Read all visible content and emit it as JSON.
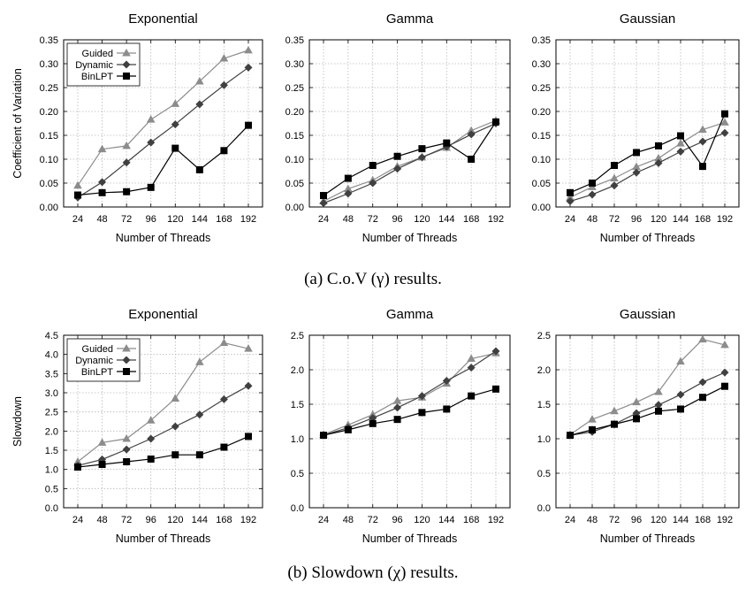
{
  "captions": {
    "a": "(a) C.o.V (γ) results.",
    "b": "(b) Slowdown (χ) results."
  },
  "styles": {
    "Guided": {
      "color": "#8c8c8c",
      "marker": "triangle"
    },
    "Dynamic": {
      "color": "#404040",
      "marker": "diamond"
    },
    "BinLPT": {
      "color": "#000000",
      "marker": "square"
    }
  },
  "chart_data": [
    {
      "type": "line",
      "title": "Exponential",
      "xlabel": "Number of Threads",
      "ylabel": "Coefficient of Variation",
      "ylim": [
        0,
        0.35
      ],
      "yticks": [
        0,
        0.05,
        0.1,
        0.15,
        0.2,
        0.25,
        0.3,
        0.35
      ],
      "ytick_labels": [
        "0.00",
        "0.05",
        "0.10",
        "0.15",
        "0.20",
        "0.25",
        "0.30",
        "0.35"
      ],
      "categories": [
        "24",
        "48",
        "72",
        "96",
        "120",
        "144",
        "168",
        "192"
      ],
      "grid": true,
      "legend": "top-left",
      "series": [
        {
          "name": "Guided",
          "values": [
            0.045,
            0.121,
            0.128,
            0.183,
            0.216,
            0.263,
            0.311,
            0.328
          ]
        },
        {
          "name": "Dynamic",
          "values": [
            0.02,
            0.052,
            0.093,
            0.135,
            0.173,
            0.215,
            0.255,
            0.292
          ]
        },
        {
          "name": "BinLPT",
          "values": [
            0.025,
            0.03,
            0.032,
            0.041,
            0.123,
            0.078,
            0.118,
            0.171
          ]
        }
      ]
    },
    {
      "type": "line",
      "title": "Gamma",
      "xlabel": "Number of Threads",
      "ylabel": "",
      "ylim": [
        0,
        0.35
      ],
      "yticks": [
        0,
        0.05,
        0.1,
        0.15,
        0.2,
        0.25,
        0.3,
        0.35
      ],
      "ytick_labels": [
        "0.00",
        "0.05",
        "0.10",
        "0.15",
        "0.20",
        "0.25",
        "0.30",
        "0.35"
      ],
      "categories": [
        "24",
        "48",
        "72",
        "96",
        "120",
        "144",
        "168",
        "192"
      ],
      "grid": true,
      "series": [
        {
          "name": "Guided",
          "values": [
            0.012,
            0.038,
            0.056,
            0.085,
            0.104,
            0.124,
            0.16,
            0.181
          ]
        },
        {
          "name": "Dynamic",
          "values": [
            0.008,
            0.028,
            0.05,
            0.08,
            0.104,
            0.126,
            0.152,
            0.175
          ]
        },
        {
          "name": "BinLPT",
          "values": [
            0.024,
            0.06,
            0.087,
            0.106,
            0.122,
            0.134,
            0.1,
            0.178
          ]
        }
      ]
    },
    {
      "type": "line",
      "title": "Gaussian",
      "xlabel": "Number of Threads",
      "ylabel": "",
      "ylim": [
        0,
        0.35
      ],
      "yticks": [
        0,
        0.05,
        0.1,
        0.15,
        0.2,
        0.25,
        0.3,
        0.35
      ],
      "ytick_labels": [
        "0.00",
        "0.05",
        "0.10",
        "0.15",
        "0.20",
        "0.25",
        "0.30",
        "0.35"
      ],
      "categories": [
        "24",
        "48",
        "72",
        "96",
        "120",
        "144",
        "168",
        "192"
      ],
      "grid": true,
      "series": [
        {
          "name": "Guided",
          "values": [
            0.02,
            0.042,
            0.06,
            0.084,
            0.102,
            0.133,
            0.162,
            0.177
          ]
        },
        {
          "name": "Dynamic",
          "values": [
            0.012,
            0.026,
            0.045,
            0.072,
            0.092,
            0.116,
            0.137,
            0.155
          ]
        },
        {
          "name": "BinLPT",
          "values": [
            0.03,
            0.05,
            0.087,
            0.114,
            0.128,
            0.149,
            0.085,
            0.195
          ]
        }
      ]
    },
    {
      "type": "line",
      "title": "Exponential",
      "xlabel": "Number of Threads",
      "ylabel": "Slowdown",
      "ylim": [
        0,
        4.5
      ],
      "yticks": [
        0,
        0.5,
        1.0,
        1.5,
        2.0,
        2.5,
        3.0,
        3.5,
        4.0,
        4.5
      ],
      "ytick_labels": [
        "0.0",
        "0.5",
        "1.0",
        "1.5",
        "2.0",
        "2.5",
        "3.0",
        "3.5",
        "4.0",
        "4.5"
      ],
      "categories": [
        "24",
        "48",
        "72",
        "96",
        "120",
        "144",
        "168",
        "192"
      ],
      "grid": true,
      "legend": "top-left",
      "series": [
        {
          "name": "Guided",
          "values": [
            1.2,
            1.7,
            1.8,
            2.28,
            2.85,
            3.8,
            4.3,
            4.15
          ]
        },
        {
          "name": "Dynamic",
          "values": [
            1.1,
            1.26,
            1.52,
            1.8,
            2.12,
            2.43,
            2.83,
            3.18
          ]
        },
        {
          "name": "BinLPT",
          "values": [
            1.06,
            1.13,
            1.2,
            1.27,
            1.38,
            1.38,
            1.58,
            1.86
          ]
        }
      ]
    },
    {
      "type": "line",
      "title": "Gamma",
      "xlabel": "Number of Threads",
      "ylabel": "",
      "ylim": [
        0,
        2.5
      ],
      "yticks": [
        0,
        0.5,
        1.0,
        1.5,
        2.0,
        2.5
      ],
      "ytick_labels": [
        "0.0",
        "0.5",
        "1.0",
        "1.5",
        "2.0",
        "2.5"
      ],
      "categories": [
        "24",
        "48",
        "72",
        "96",
        "120",
        "144",
        "168",
        "192"
      ],
      "grid": true,
      "series": [
        {
          "name": "Guided",
          "values": [
            1.06,
            1.2,
            1.35,
            1.55,
            1.6,
            1.8,
            2.16,
            2.24
          ]
        },
        {
          "name": "Dynamic",
          "values": [
            1.05,
            1.16,
            1.3,
            1.45,
            1.62,
            1.84,
            2.03,
            2.27
          ]
        },
        {
          "name": "BinLPT",
          "values": [
            1.05,
            1.13,
            1.22,
            1.28,
            1.38,
            1.43,
            1.62,
            1.72
          ]
        }
      ]
    },
    {
      "type": "line",
      "title": "Gaussian",
      "xlabel": "Number of Threads",
      "ylabel": "",
      "ylim": [
        0,
        2.5
      ],
      "yticks": [
        0,
        0.5,
        1.0,
        1.5,
        2.0,
        2.5
      ],
      "ytick_labels": [
        "0.0",
        "0.5",
        "1.0",
        "1.5",
        "2.0",
        "2.5"
      ],
      "categories": [
        "24",
        "48",
        "72",
        "96",
        "120",
        "144",
        "168",
        "192"
      ],
      "grid": true,
      "series": [
        {
          "name": "Guided",
          "values": [
            1.06,
            1.28,
            1.4,
            1.53,
            1.68,
            2.12,
            2.44,
            2.36
          ]
        },
        {
          "name": "Dynamic",
          "values": [
            1.05,
            1.1,
            1.21,
            1.37,
            1.49,
            1.64,
            1.82,
            1.96
          ]
        },
        {
          "name": "BinLPT",
          "values": [
            1.05,
            1.13,
            1.21,
            1.29,
            1.4,
            1.43,
            1.6,
            1.76
          ]
        }
      ]
    }
  ]
}
